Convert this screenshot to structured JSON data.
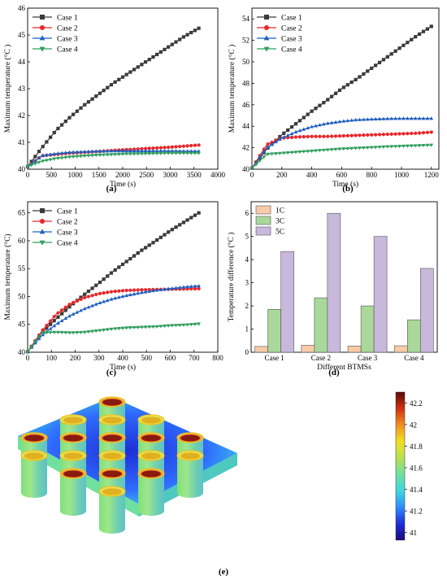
{
  "figure": {
    "panel_labels": [
      "(a)",
      "(b)",
      "(c)",
      "(d)",
      "(e)"
    ],
    "colorbar": {
      "ticks": [
        "42.2",
        "42",
        "41.8",
        "41.6",
        "41.4",
        "41.2",
        "41"
      ],
      "tick_values": [
        42.2,
        42.0,
        41.8,
        41.6,
        41.4,
        41.2,
        41.0
      ],
      "min": 40.93,
      "max": 42.3,
      "colors": [
        "#1a0a7a",
        "#1f2ed6",
        "#2f8cff",
        "#3fd6e0",
        "#6ee0a0",
        "#b8e050",
        "#f0e020",
        "#f09020",
        "#d03010",
        "#5a0a0a"
      ]
    }
  },
  "chart_data": [
    {
      "panel": "(a)",
      "type": "line",
      "xlabel": "Time (s)",
      "ylabel": "Maximum temperature (°C )",
      "xlim": [
        0,
        4000
      ],
      "ylim": [
        40,
        46
      ],
      "xticks": [
        "0",
        "500",
        "1000",
        "1500",
        "2000",
        "2500",
        "3000",
        "3500",
        "4000"
      ],
      "yticks": [
        "40",
        "41",
        "42",
        "43",
        "44",
        "45",
        "46"
      ],
      "legend_position": "top-left",
      "series": [
        {
          "name": "Case 1",
          "color": "#3a3a3a",
          "marker": "square",
          "x": [
            0,
            300,
            600,
            900,
            1200,
            1500,
            1800,
            2100,
            2400,
            2700,
            3000,
            3300,
            3600
          ],
          "y": [
            40.1,
            40.8,
            41.45,
            41.95,
            42.4,
            42.8,
            43.2,
            43.55,
            43.9,
            44.25,
            44.6,
            44.95,
            45.25
          ]
        },
        {
          "name": "Case 2",
          "color": "#e8262b",
          "marker": "circle",
          "x": [
            0,
            300,
            600,
            900,
            1200,
            1500,
            1800,
            2100,
            2400,
            2700,
            3000,
            3300,
            3600
          ],
          "y": [
            40.1,
            40.5,
            40.55,
            40.6,
            40.63,
            40.66,
            40.7,
            40.73,
            40.76,
            40.79,
            40.82,
            40.86,
            40.9
          ]
        },
        {
          "name": "Case 3",
          "color": "#1f5fbf",
          "marker": "triangle-up",
          "x": [
            0,
            300,
            600,
            900,
            1200,
            1500,
            1800,
            2100,
            2400,
            2700,
            3000,
            3300,
            3600
          ],
          "y": [
            40.1,
            40.5,
            40.58,
            40.63,
            40.65,
            40.67,
            40.68,
            40.68,
            40.68,
            40.68,
            40.68,
            40.67,
            40.67
          ]
        },
        {
          "name": "Case 4",
          "color": "#2e9e5b",
          "marker": "triangle-down",
          "x": [
            0,
            300,
            600,
            900,
            1200,
            1500,
            1800,
            2100,
            2400,
            2700,
            3000,
            3300,
            3600
          ],
          "y": [
            40.1,
            40.3,
            40.4,
            40.46,
            40.5,
            40.53,
            40.55,
            40.57,
            40.58,
            40.59,
            40.6,
            40.6,
            40.6
          ]
        }
      ]
    },
    {
      "panel": "(b)",
      "type": "line",
      "xlabel": "Time (s)",
      "ylabel": "Maximum temperature (°C )",
      "xlim": [
        0,
        1250
      ],
      "ylim": [
        40,
        55
      ],
      "xticks": [
        "0",
        "200",
        "400",
        "600",
        "800",
        "1000",
        "1200"
      ],
      "yticks": [
        "40",
        "42",
        "44",
        "46",
        "48",
        "50",
        "52",
        "54"
      ],
      "legend_position": "top-left",
      "series": [
        {
          "name": "Case 1",
          "color": "#3a3a3a",
          "marker": "square",
          "x": [
            0,
            100,
            200,
            300,
            400,
            500,
            600,
            700,
            800,
            900,
            1000,
            1100,
            1200
          ],
          "y": [
            40.1,
            41.9,
            43.2,
            44.3,
            45.4,
            46.4,
            47.5,
            48.4,
            49.4,
            50.4,
            51.4,
            52.4,
            53.3
          ]
        },
        {
          "name": "Case 2",
          "color": "#e8262b",
          "marker": "circle",
          "x": [
            0,
            100,
            200,
            300,
            400,
            500,
            600,
            700,
            800,
            900,
            1000,
            1100,
            1200
          ],
          "y": [
            40.1,
            42.3,
            42.9,
            43.0,
            43.05,
            43.05,
            43.1,
            43.15,
            43.2,
            43.25,
            43.3,
            43.35,
            43.45
          ]
        },
        {
          "name": "Case 3",
          "color": "#1f5fbf",
          "marker": "triangle-up",
          "x": [
            0,
            100,
            200,
            300,
            400,
            500,
            600,
            700,
            800,
            900,
            1000,
            1100,
            1200
          ],
          "y": [
            40.1,
            42.0,
            42.9,
            43.5,
            43.95,
            44.25,
            44.45,
            44.6,
            44.65,
            44.7,
            44.72,
            44.72,
            44.72
          ]
        },
        {
          "name": "Case 4",
          "color": "#2e9e5b",
          "marker": "triangle-down",
          "x": [
            0,
            100,
            200,
            300,
            400,
            500,
            600,
            700,
            800,
            900,
            1000,
            1100,
            1200
          ],
          "y": [
            40.1,
            41.4,
            41.5,
            41.6,
            41.7,
            41.8,
            41.9,
            41.97,
            42.03,
            42.1,
            42.15,
            42.2,
            42.25
          ]
        }
      ]
    },
    {
      "panel": "(c)",
      "type": "line",
      "xlabel": "Time (s)",
      "ylabel": "Maximum temperature (°C)",
      "xlim": [
        0,
        800
      ],
      "ylim": [
        40,
        67
      ],
      "xticks": [
        "0",
        "100",
        "200",
        "300",
        "400",
        "500",
        "600",
        "700",
        "800"
      ],
      "yticks": [
        "40",
        "45",
        "50",
        "55",
        "60",
        "65"
      ],
      "legend_position": "top-left",
      "series": [
        {
          "name": "Case 1",
          "color": "#3a3a3a",
          "marker": "square",
          "x": [
            0,
            60,
            120,
            180,
            240,
            300,
            360,
            420,
            480,
            540,
            600,
            660,
            720
          ],
          "y": [
            40.1,
            43.5,
            46.0,
            48.3,
            50.4,
            52.4,
            54.5,
            56.4,
            58.3,
            60.0,
            61.8,
            63.4,
            65.0
          ]
        },
        {
          "name": "Case 2",
          "color": "#e8262b",
          "marker": "circle",
          "x": [
            0,
            60,
            120,
            180,
            240,
            300,
            360,
            420,
            480,
            540,
            600,
            660,
            720
          ],
          "y": [
            40.1,
            43.8,
            46.8,
            48.7,
            49.8,
            50.5,
            50.9,
            51.1,
            51.2,
            51.25,
            51.3,
            51.35,
            51.4
          ]
        },
        {
          "name": "Case 3",
          "color": "#1f5fbf",
          "marker": "triangle-up",
          "x": [
            0,
            60,
            120,
            180,
            240,
            300,
            360,
            420,
            480,
            540,
            600,
            660,
            720
          ],
          "y": [
            40.1,
            43.0,
            45.0,
            46.6,
            47.8,
            48.8,
            49.6,
            50.2,
            50.7,
            51.1,
            51.4,
            51.7,
            51.9
          ]
        },
        {
          "name": "Case 4",
          "color": "#2e9e5b",
          "marker": "triangle-down",
          "x": [
            0,
            60,
            120,
            180,
            240,
            300,
            360,
            420,
            480,
            540,
            600,
            660,
            720
          ],
          "y": [
            40.1,
            43.5,
            43.6,
            43.5,
            43.6,
            43.9,
            44.2,
            44.4,
            44.5,
            44.6,
            44.8,
            44.9,
            45.1
          ]
        }
      ]
    },
    {
      "panel": "(d)",
      "type": "bar",
      "xlabel": "Different BTMSs",
      "ylabel": "Temperature difference (°C )",
      "categories": [
        "Case 1",
        "Case 2",
        "Case 3",
        "Case 4"
      ],
      "ylim": [
        0,
        6.5
      ],
      "yticks": [
        "0",
        "1",
        "2",
        "3",
        "4",
        "5",
        "6"
      ],
      "legend_position": "top-left",
      "series": [
        {
          "name": "1C",
          "color": "#f8cba8",
          "values": [
            0.25,
            0.3,
            0.27,
            0.28
          ]
        },
        {
          "name": "3C",
          "color": "#a9d89a",
          "values": [
            1.85,
            2.35,
            2.0,
            1.4
          ]
        },
        {
          "name": "5C",
          "color": "#c8b8dc",
          "values": [
            4.35,
            6.0,
            5.0,
            3.62
          ]
        }
      ]
    }
  ]
}
